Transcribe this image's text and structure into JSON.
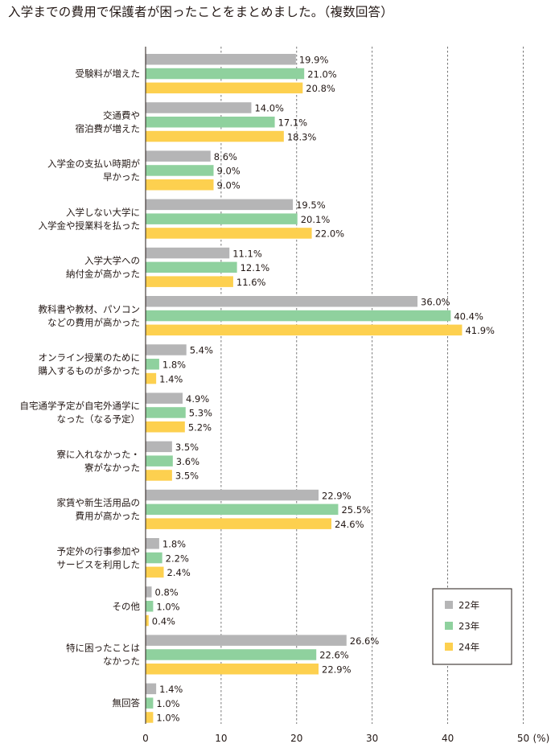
{
  "chart_data": {
    "type": "bar",
    "orientation": "horizontal",
    "title": "入学までの費用で保護者が困ったことをまとめました。（複数回答）",
    "categories": [
      [
        "受験料が増えた"
      ],
      [
        "交通費や",
        "宿泊費が増えた"
      ],
      [
        "入学金の支払い時期が",
        "早かった"
      ],
      [
        "入学しない大学に",
        "入学金や授業料を払った"
      ],
      [
        "入学大学への",
        "納付金が高かった"
      ],
      [
        "教科書や教材、パソコン",
        "などの費用が高かった"
      ],
      [
        "オンライン授業のために",
        "購入するものが多かった"
      ],
      [
        "自宅通学予定が自宅外通学に",
        "なった（なる予定）"
      ],
      [
        "寮に入れなかった・",
        "寮がなかった"
      ],
      [
        "家賃や新生活用品の",
        "費用が高かった"
      ],
      [
        "予定外の行事参加や",
        "サービスを利用した"
      ],
      [
        "その他"
      ],
      [
        "特に困ったことは",
        "なかった"
      ],
      [
        "無回答"
      ]
    ],
    "series": [
      {
        "name": "22年",
        "color": "#b5b5b6",
        "values": [
          19.9,
          14.0,
          8.6,
          19.5,
          11.1,
          36.0,
          5.4,
          4.9,
          3.5,
          22.9,
          1.8,
          0.8,
          26.6,
          1.4
        ],
        "labels": [
          "19.9%",
          "14.0%",
          "8.6%",
          "19.5%",
          "11.1%",
          "36.0%",
          "5.4%",
          "4.9%",
          "3.5%",
          "22.9%",
          "1.8%",
          "0.8%",
          "26.6%",
          "1.4%"
        ]
      },
      {
        "name": "23年",
        "color": "#8fd19e",
        "values": [
          21.0,
          17.1,
          9.0,
          20.1,
          12.1,
          40.4,
          1.8,
          5.3,
          3.6,
          25.5,
          2.2,
          1.0,
          22.6,
          1.0
        ],
        "labels": [
          "21.0%",
          "17.1%",
          "9.0%",
          "20.1%",
          "12.1%",
          "40.4%",
          "1.8%",
          "5.3%",
          "3.6%",
          "25.5%",
          "2.2%",
          "1.0%",
          "22.6%",
          "1.0%"
        ]
      },
      {
        "name": "24年",
        "color": "#fdd04f",
        "values": [
          20.8,
          18.3,
          9.0,
          22.0,
          11.6,
          41.9,
          1.4,
          5.2,
          3.5,
          24.6,
          2.4,
          0.4,
          22.9,
          1.0
        ],
        "labels": [
          "20.8%",
          "18.3%",
          "9.0%",
          "22.0%",
          "11.6%",
          "41.9%",
          "1.4%",
          "5.2%",
          "3.5%",
          "24.6%",
          "2.4%",
          "0.4%",
          "22.9%",
          "1.0%"
        ]
      }
    ],
    "xlim": [
      0,
      50
    ],
    "xticks": [
      0,
      10,
      20,
      30,
      40,
      50
    ],
    "xtick_labels": [
      "0",
      "10",
      "20",
      "30",
      "40",
      "50"
    ],
    "x_unit": "(%)",
    "grid": "vertical dashed",
    "legend_position": "bottom-right"
  }
}
